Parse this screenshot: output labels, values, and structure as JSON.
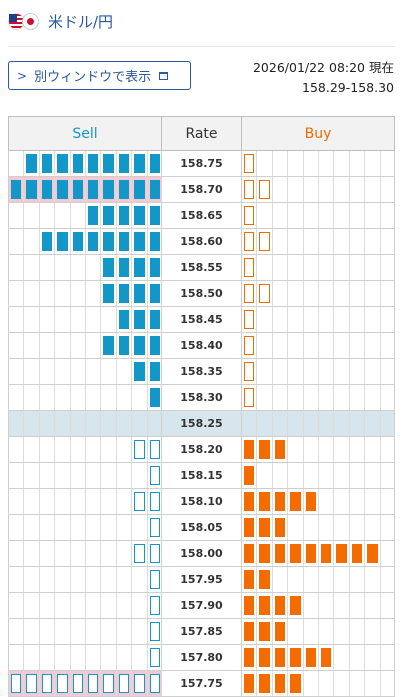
{
  "header": {
    "pair": "米ドル/円",
    "flag_left": "us-flag-icon",
    "flag_right": "jp-flag-icon"
  },
  "window_button": {
    "label": "別ウィンドウで表示"
  },
  "info": {
    "datetime": "2026/01/22 08:20 現在",
    "range": "158.29-158.30"
  },
  "table": {
    "sell_header": "Sell",
    "rate_header": "Rate",
    "buy_header": "Buy",
    "colors": {
      "sell": "#1297c8",
      "buy": "#f46b00",
      "overflow": "#f3c9d2",
      "current_row": "#d6e6ec"
    },
    "rows": [
      {
        "rate": "158.75",
        "sell_filled": 9,
        "sell_outline": 0,
        "sell_over": false,
        "buy_filled": 0,
        "buy_outline": 1,
        "current": false
      },
      {
        "rate": "158.70",
        "sell_filled": 10,
        "sell_outline": 0,
        "sell_over": true,
        "buy_filled": 0,
        "buy_outline": 2,
        "current": false
      },
      {
        "rate": "158.65",
        "sell_filled": 5,
        "sell_outline": 0,
        "sell_over": false,
        "buy_filled": 0,
        "buy_outline": 1,
        "current": false
      },
      {
        "rate": "158.60",
        "sell_filled": 8,
        "sell_outline": 0,
        "sell_over": false,
        "buy_filled": 0,
        "buy_outline": 2,
        "current": false
      },
      {
        "rate": "158.55",
        "sell_filled": 4,
        "sell_outline": 0,
        "sell_over": false,
        "buy_filled": 0,
        "buy_outline": 1,
        "current": false
      },
      {
        "rate": "158.50",
        "sell_filled": 4,
        "sell_outline": 0,
        "sell_over": false,
        "buy_filled": 0,
        "buy_outline": 2,
        "current": false
      },
      {
        "rate": "158.45",
        "sell_filled": 3,
        "sell_outline": 0,
        "sell_over": false,
        "buy_filled": 0,
        "buy_outline": 1,
        "current": false
      },
      {
        "rate": "158.40",
        "sell_filled": 4,
        "sell_outline": 0,
        "sell_over": false,
        "buy_filled": 0,
        "buy_outline": 1,
        "current": false
      },
      {
        "rate": "158.35",
        "sell_filled": 2,
        "sell_outline": 0,
        "sell_over": false,
        "buy_filled": 0,
        "buy_outline": 1,
        "current": false
      },
      {
        "rate": "158.30",
        "sell_filled": 1,
        "sell_outline": 0,
        "sell_over": false,
        "buy_filled": 0,
        "buy_outline": 1,
        "current": false
      },
      {
        "rate": "158.25",
        "sell_filled": 0,
        "sell_outline": 0,
        "sell_over": false,
        "buy_filled": 0,
        "buy_outline": 0,
        "current": true
      },
      {
        "rate": "158.20",
        "sell_filled": 0,
        "sell_outline": 2,
        "sell_over": false,
        "buy_filled": 3,
        "buy_outline": 0,
        "current": false
      },
      {
        "rate": "158.15",
        "sell_filled": 0,
        "sell_outline": 1,
        "sell_over": false,
        "buy_filled": 1,
        "buy_outline": 0,
        "current": false
      },
      {
        "rate": "158.10",
        "sell_filled": 0,
        "sell_outline": 2,
        "sell_over": false,
        "buy_filled": 5,
        "buy_outline": 0,
        "current": false
      },
      {
        "rate": "158.05",
        "sell_filled": 0,
        "sell_outline": 1,
        "sell_over": false,
        "buy_filled": 3,
        "buy_outline": 0,
        "current": false
      },
      {
        "rate": "158.00",
        "sell_filled": 0,
        "sell_outline": 2,
        "sell_over": false,
        "buy_filled": 9,
        "buy_outline": 0,
        "current": false
      },
      {
        "rate": "157.95",
        "sell_filled": 0,
        "sell_outline": 1,
        "sell_over": false,
        "buy_filled": 2,
        "buy_outline": 0,
        "current": false
      },
      {
        "rate": "157.90",
        "sell_filled": 0,
        "sell_outline": 1,
        "sell_over": false,
        "buy_filled": 4,
        "buy_outline": 0,
        "current": false
      },
      {
        "rate": "157.85",
        "sell_filled": 0,
        "sell_outline": 1,
        "sell_over": false,
        "buy_filled": 3,
        "buy_outline": 0,
        "current": false
      },
      {
        "rate": "157.80",
        "sell_filled": 0,
        "sell_outline": 1,
        "sell_over": false,
        "buy_filled": 6,
        "buy_outline": 0,
        "current": false
      },
      {
        "rate": "157.75",
        "sell_filled": 0,
        "sell_outline": 10,
        "sell_over": true,
        "buy_filled": 4,
        "buy_outline": 0,
        "current": false
      }
    ]
  }
}
